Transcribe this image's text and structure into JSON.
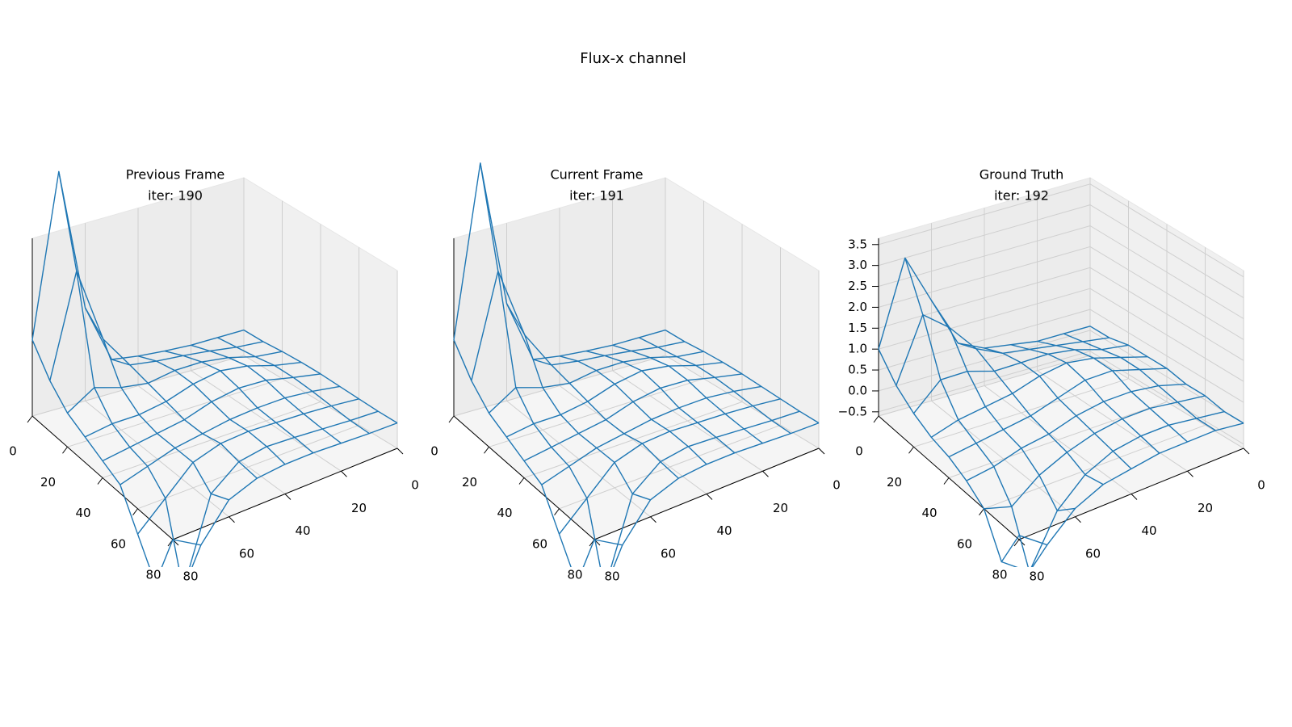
{
  "title": "Flux-x channel",
  "chart_data": [
    {
      "type": "wireframe",
      "title": "Previous Frame",
      "subtitle": "iter: 190",
      "color": "#1f77b4",
      "x": [
        0,
        10,
        20,
        30,
        40,
        50,
        60,
        70,
        80
      ],
      "y": [
        0,
        10,
        20,
        30,
        40,
        50,
        60,
        70,
        80
      ],
      "xlim": [
        0,
        80
      ],
      "ylim": [
        0,
        80
      ],
      "zlim": [
        -3,
        18
      ],
      "xticks": [
        0,
        20,
        40,
        60,
        80
      ],
      "yticks": [
        0,
        20,
        40,
        60,
        80
      ],
      "z": [
        [
          0,
          0,
          0,
          0.2,
          0.5,
          1,
          8,
          25,
          6
        ],
        [
          0,
          0.3,
          0.8,
          1.2,
          1.5,
          2,
          6,
          15,
          3
        ],
        [
          0.2,
          0.6,
          1.5,
          2,
          2,
          1.5,
          2,
          3,
          1
        ],
        [
          0.3,
          1,
          2,
          2.5,
          2,
          1,
          0.5,
          0.5,
          0
        ],
        [
          0.3,
          1,
          1.8,
          2,
          1.5,
          0.5,
          0,
          -0.5,
          -1
        ],
        [
          0.2,
          0.8,
          1.2,
          1.2,
          1,
          0.5,
          0,
          -1,
          -2
        ],
        [
          0.1,
          0.5,
          0.8,
          1,
          1.2,
          1,
          0,
          -3,
          -6
        ],
        [
          0,
          0.2,
          0.5,
          0.8,
          1,
          0.5,
          -2,
          -12,
          -10
        ],
        [
          0,
          0.1,
          0.3,
          0.5,
          0.5,
          0.2,
          -1,
          -5,
          -3
        ]
      ]
    },
    {
      "type": "wireframe",
      "title": "Current Frame",
      "subtitle": "iter: 191",
      "color": "#1f77b4",
      "x": [
        0,
        10,
        20,
        30,
        40,
        50,
        60,
        70,
        80
      ],
      "y": [
        0,
        10,
        20,
        30,
        40,
        50,
        60,
        70,
        80
      ],
      "xlim": [
        0,
        80
      ],
      "ylim": [
        0,
        80
      ],
      "zlim": [
        -3,
        18
      ],
      "xticks": [
        0,
        20,
        40,
        60,
        80
      ],
      "yticks": [
        0,
        20,
        40,
        60,
        80
      ],
      "z": [
        [
          0,
          0,
          0,
          0.2,
          0.5,
          1,
          8.5,
          26,
          6
        ],
        [
          0,
          0.3,
          0.8,
          1.2,
          1.5,
          2,
          6.5,
          15,
          3
        ],
        [
          0.2,
          0.6,
          1.5,
          2,
          2,
          1.5,
          2,
          3,
          1
        ],
        [
          0.3,
          1,
          2,
          2.5,
          2,
          1,
          0.5,
          0.5,
          0
        ],
        [
          0.3,
          1,
          1.8,
          2,
          1.5,
          0.5,
          0,
          -0.5,
          -1
        ],
        [
          0.2,
          0.8,
          1.2,
          1.2,
          1,
          0.5,
          0,
          -1,
          -2
        ],
        [
          0.1,
          0.5,
          0.8,
          1,
          1.2,
          1,
          0,
          -3,
          -6
        ],
        [
          0,
          0.2,
          0.5,
          0.8,
          1,
          0.5,
          -2,
          -12,
          -10
        ],
        [
          0,
          0.1,
          0.3,
          0.5,
          0.5,
          0.2,
          -1,
          -5,
          -3
        ]
      ]
    },
    {
      "type": "wireframe",
      "title": "Ground Truth",
      "subtitle": "iter: 192",
      "color": "#1f77b4",
      "x": [
        0,
        10,
        20,
        30,
        40,
        50,
        60,
        70,
        80
      ],
      "y": [
        0,
        10,
        20,
        30,
        40,
        50,
        60,
        70,
        80
      ],
      "xlim": [
        0,
        80
      ],
      "ylim": [
        0,
        80
      ],
      "zlim": [
        -0.6,
        3.65
      ],
      "xticks": [
        0,
        20,
        40,
        60,
        80
      ],
      "yticks": [
        0,
        20,
        40,
        60,
        80
      ],
      "zticks": [
        {
          "value": -0.5,
          "label": "−0.5"
        },
        {
          "value": 0,
          "label": "0.0"
        },
        0.5,
        {
          "value": 1,
          "label": "1.0"
        },
        1.5,
        {
          "value": 2,
          "label": "2.0"
        },
        2.5,
        {
          "value": 3,
          "label": "3.0"
        },
        3.5
      ],
      "z": [
        [
          0.1,
          0.1,
          0.1,
          0.2,
          0.3,
          0.6,
          1.8,
          3.0,
          1.0
        ],
        [
          0.1,
          0.2,
          0.3,
          0.4,
          0.5,
          0.8,
          1.5,
          2.0,
          0.5
        ],
        [
          0.2,
          0.3,
          0.5,
          0.6,
          0.6,
          0.6,
          0.8,
          0.8,
          0.2
        ],
        [
          0.2,
          0.4,
          0.6,
          0.7,
          0.6,
          0.4,
          0.3,
          0.2,
          0.0
        ],
        [
          0.2,
          0.4,
          0.6,
          0.6,
          0.4,
          0.2,
          0.1,
          0.0,
          -0.1
        ],
        [
          0.1,
          0.3,
          0.4,
          0.4,
          0.3,
          0.1,
          0.0,
          -0.2,
          -0.3
        ],
        [
          0.1,
          0.2,
          0.3,
          0.3,
          0.2,
          0.0,
          -0.3,
          -0.8,
          -0.6
        ],
        [
          0.0,
          0.1,
          0.2,
          0.2,
          0.1,
          -0.2,
          -0.8,
          -2.0,
          -1.5
        ],
        [
          0.0,
          0.1,
          0.1,
          0.1,
          0.0,
          -0.1,
          -0.4,
          -1.0,
          -0.5
        ]
      ]
    }
  ]
}
